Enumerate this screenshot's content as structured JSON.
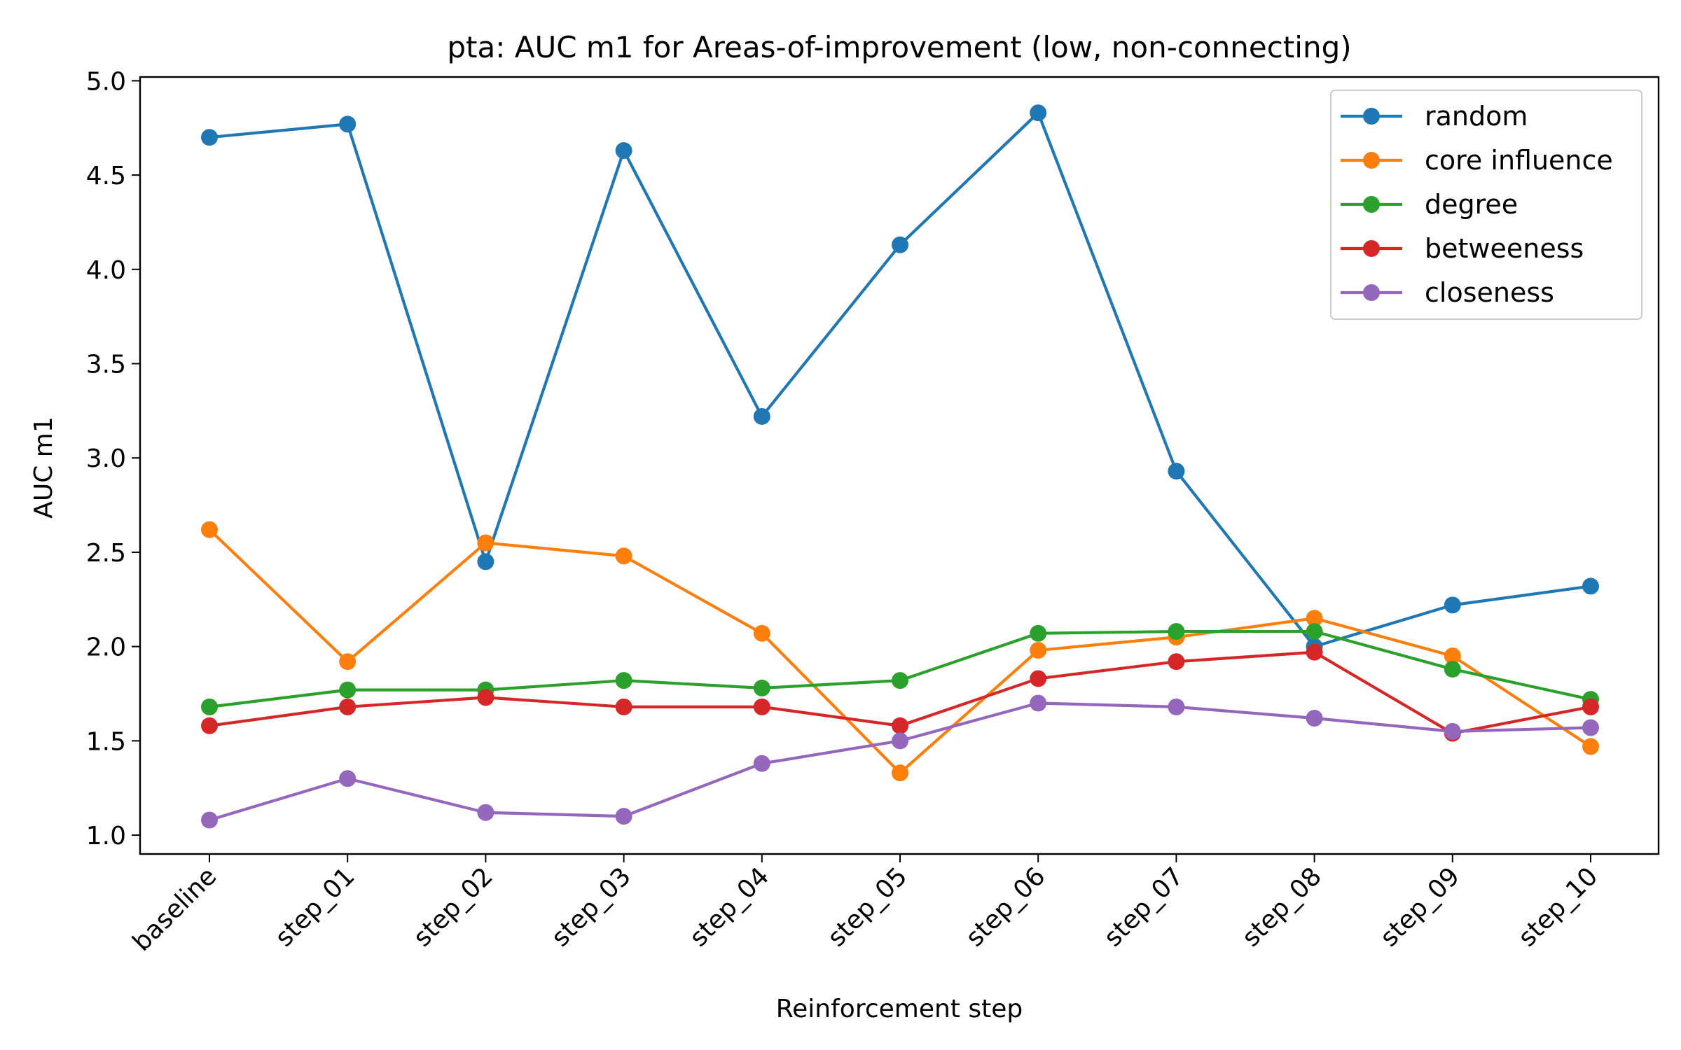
{
  "chart_data": {
    "type": "line",
    "title": "pta: AUC m1 for Areas-of-improvement (low, non-connecting)",
    "xlabel": "Reinforcement step",
    "ylabel": "AUC m1",
    "categories": [
      "baseline",
      "step_01",
      "step_02",
      "step_03",
      "step_04",
      "step_05",
      "step_06",
      "step_07",
      "step_08",
      "step_09",
      "step_10"
    ],
    "ylim": [
      0.9,
      5.02
    ],
    "yticks": [
      1.0,
      1.5,
      2.0,
      2.5,
      3.0,
      3.5,
      4.0,
      4.5,
      5.0
    ],
    "ytick_labels": [
      "1.0",
      "1.5",
      "2.0",
      "2.5",
      "3.0",
      "3.5",
      "4.0",
      "4.5",
      "5.0"
    ],
    "grid": false,
    "legend_position": "top-right",
    "series": [
      {
        "name": "random",
        "color": "#1f77b4",
        "values": [
          4.7,
          4.77,
          2.45,
          4.63,
          3.22,
          4.13,
          4.83,
          2.93,
          2.0,
          2.22,
          2.32
        ]
      },
      {
        "name": "core influence",
        "color": "#ff7f0e",
        "values": [
          2.62,
          1.92,
          2.55,
          2.48,
          2.07,
          1.33,
          1.98,
          2.05,
          2.15,
          1.95,
          1.47
        ]
      },
      {
        "name": "degree",
        "color": "#2ca02c",
        "values": [
          1.68,
          1.77,
          1.77,
          1.82,
          1.78,
          1.82,
          2.07,
          2.08,
          2.08,
          1.88,
          1.72
        ]
      },
      {
        "name": "betweeness",
        "color": "#d62728",
        "values": [
          1.58,
          1.68,
          1.73,
          1.68,
          1.68,
          1.58,
          1.83,
          1.92,
          1.97,
          1.54,
          1.68
        ]
      },
      {
        "name": "closeness",
        "color": "#9467bd",
        "values": [
          1.08,
          1.3,
          1.12,
          1.1,
          1.38,
          1.5,
          1.7,
          1.68,
          1.62,
          1.55,
          1.57
        ]
      }
    ]
  }
}
